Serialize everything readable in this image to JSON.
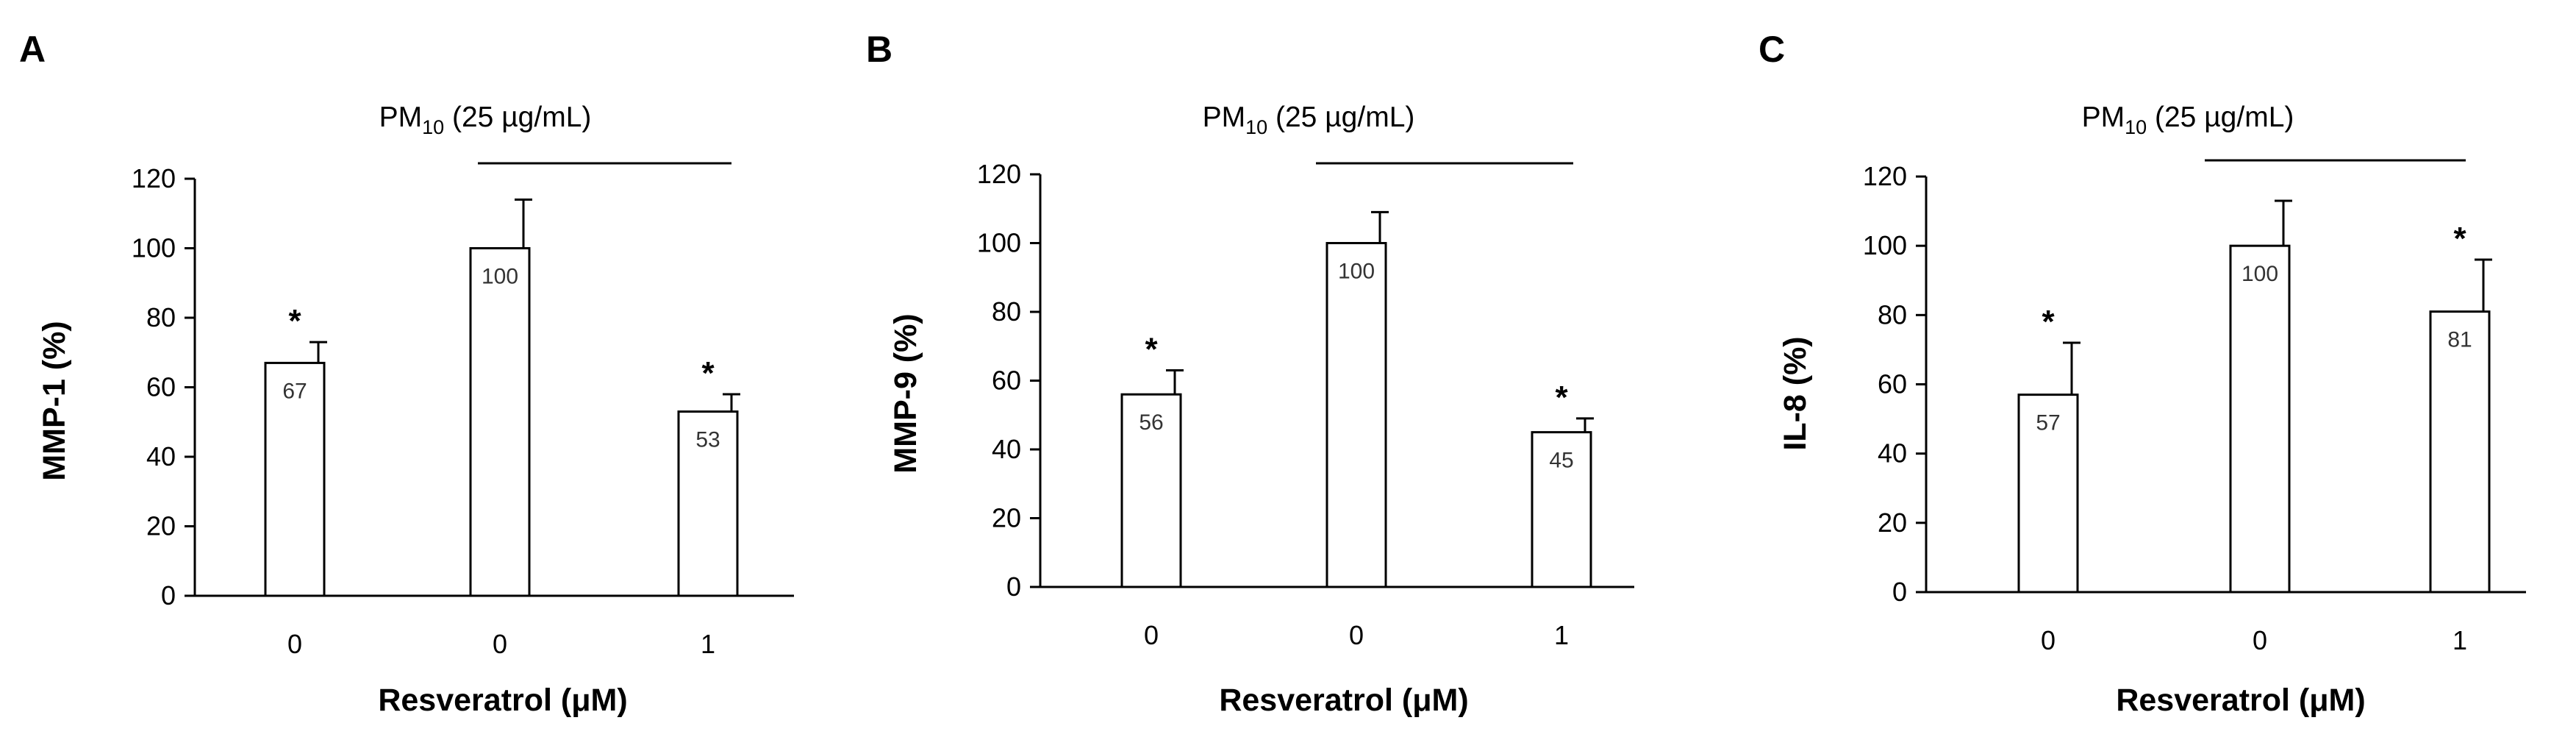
{
  "chart_data": [
    {
      "type": "bar",
      "panel_label": "A",
      "ylabel": "MMP-1 (%)",
      "xlabel": "Resveratrol (μM)",
      "categories": [
        "0",
        "0",
        "1"
      ],
      "values": [
        67,
        100,
        53
      ],
      "errors": [
        6,
        14,
        5
      ],
      "data_labels": [
        "67",
        "100",
        "53"
      ],
      "significance": [
        "*",
        "",
        "*"
      ],
      "bracket_text": "PM",
      "bracket_sub": "10",
      "bracket_rest": " (25 µg/mL)",
      "yticks": [
        "0",
        "20",
        "40",
        "60",
        "80",
        "100",
        "120"
      ],
      "ylim": [
        0,
        120
      ],
      "grid": false
    },
    {
      "type": "bar",
      "panel_label": "B",
      "ylabel": "MMP-9 (%)",
      "xlabel": "Resveratrol (μM)",
      "categories": [
        "0",
        "0",
        "1"
      ],
      "values": [
        56,
        100,
        45
      ],
      "errors": [
        7,
        9,
        4
      ],
      "data_labels": [
        "56",
        "100",
        "45"
      ],
      "significance": [
        "*",
        "",
        "*"
      ],
      "bracket_text": "PM",
      "bracket_sub": "10",
      "bracket_rest": " (25 µg/mL)",
      "yticks": [
        "0",
        "20",
        "40",
        "60",
        "80",
        "100",
        "120"
      ],
      "ylim": [
        0,
        120
      ],
      "grid": false
    },
    {
      "type": "bar",
      "panel_label": "C",
      "ylabel": "IL-8 (%)",
      "xlabel": "Resveratrol (μM)",
      "categories": [
        "0",
        "0",
        "1"
      ],
      "values": [
        57,
        100,
        81
      ],
      "errors": [
        15,
        13,
        15
      ],
      "data_labels": [
        "57",
        "100",
        "81"
      ],
      "significance": [
        "*",
        "",
        "*"
      ],
      "bracket_text": "PM",
      "bracket_sub": "10",
      "bracket_rest": " (25 µg/mL)",
      "yticks": [
        "0",
        "20",
        "40",
        "60",
        "80",
        "100",
        "120"
      ],
      "ylim": [
        0,
        120
      ],
      "grid": false
    }
  ]
}
